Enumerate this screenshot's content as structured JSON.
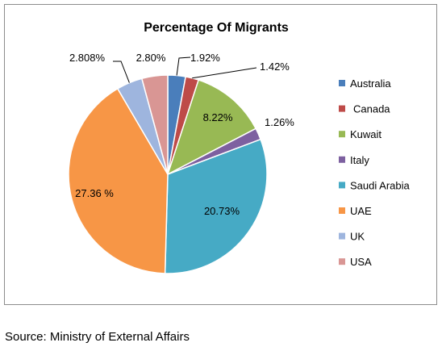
{
  "chart_data": {
    "type": "pie",
    "title": "Percentage Of Migrants",
    "categories": [
      "Australia",
      "Canada",
      "Kuwait",
      "Italy",
      "Saudi Arabia",
      "UAE",
      "UK",
      "USA"
    ],
    "values": [
      1.92,
      1.42,
      8.22,
      1.26,
      20.73,
      27.36,
      2.808,
      2.8
    ],
    "data_labels": [
      "1.92%",
      "1.42%",
      "8.22%",
      "1.26%",
      "20.73%",
      "27.36 %",
      "2.808%",
      "2.80%"
    ],
    "colors": [
      "#4a7ebb",
      "#be4b48",
      "#98b954",
      "#7d60a0",
      "#46aac5",
      "#f79646",
      "#9eb5de",
      "#d99694"
    ],
    "start_angle_deg": 0,
    "direction": "clockwise",
    "legend_position": "right"
  },
  "source_note": "Source: Ministry of External Affairs"
}
